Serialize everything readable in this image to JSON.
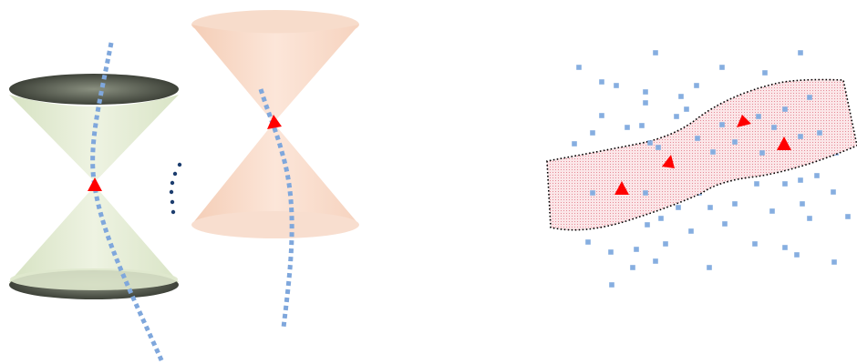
{
  "figure": {
    "colors": {
      "background": "#ffffff",
      "cone_left_fill": "#e3ecd4",
      "cone_left_rim": "#4a4f46",
      "cone_right_fill": "#f9dac8",
      "cone_right_rim": "#e6c0aa",
      "worldline": "#7fa7dc",
      "event_marker": "#ff0000",
      "ellipsis_dots": "#1c3d6e",
      "scatter_points": "#86aee0",
      "band_fill": "#f6d9dd",
      "band_stipple": "#e58a96",
      "band_border": "#000000"
    },
    "event_markers_in_band": 4
  }
}
